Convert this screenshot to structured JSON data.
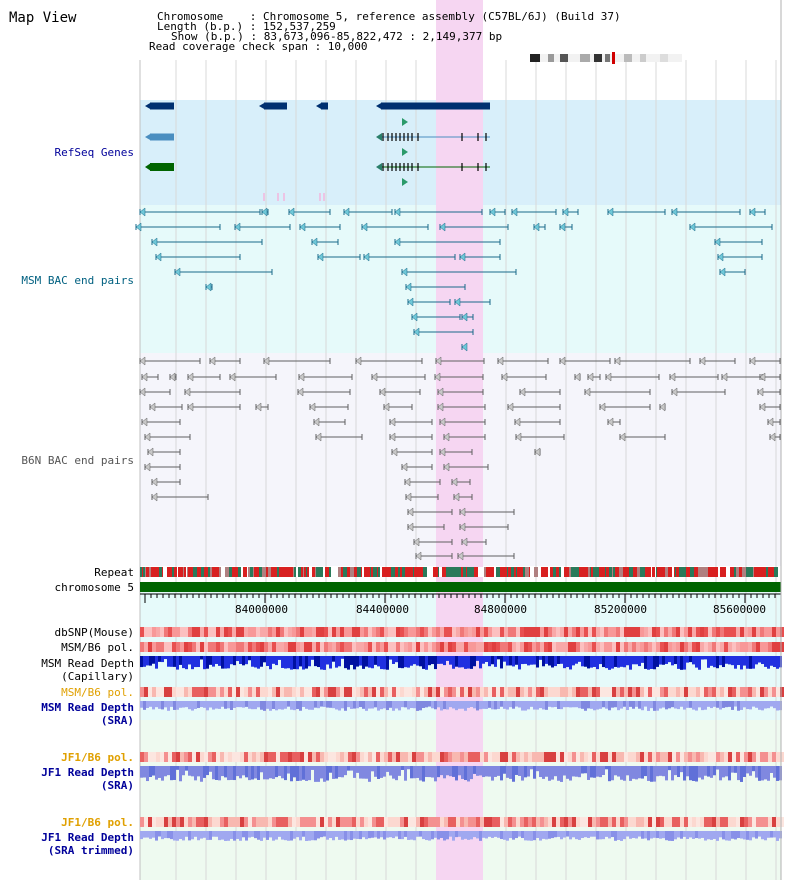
{
  "title": "Map View",
  "header": {
    "chromosome": "Chromosome    : Chromosome 5, reference assembly (C57BL/6J) (Build 37)",
    "length": "Length (b.p.) : 152,537,259",
    "show": "Show (b.p.) : 83,673,096-85,822,472 : 2,149,377 bp",
    "coverage": "Read coverage check span : 10,000"
  },
  "tracks": {
    "refseq": "RefSeq Genes",
    "msm_bac": "MSM BAC end pairs",
    "b6n_bac": "B6N BAC end pairs",
    "repeat": "Repeat",
    "chromosome": "chromosome 5",
    "dbsnp": "dbSNP(Mouse)",
    "msm_b6_pol": "MSM/B6 pol.",
    "msm_depth_cap_1": "MSM Read Depth",
    "msm_depth_cap_2": "(Capillary)",
    "msm_b6_pol_sra": "MSM/B6 pol.",
    "msm_depth_sra_1": "MSM Read Depth",
    "msm_depth_sra_2": "(SRA)",
    "jf1_pol_1": "JF1/B6 pol.",
    "jf1_depth_1": "JF1 Read Depth",
    "jf1_depth_1b": "(SRA)",
    "jf1_pol_2": "JF1/B6 pol.",
    "jf1_depth_2": "JF1 Read Depth",
    "jf1_depth_2b": "(SRA trimmed)"
  },
  "axis": {
    "ticks": [
      "84000000",
      "84400000",
      "84800000",
      "85200000",
      "85600000"
    ]
  },
  "colors": {
    "highlight": "#f6d6f2",
    "refseq_bg": "#d8effa",
    "msm_bg": "#e6fafa",
    "b6n_bg": "#f5f5fb",
    "navy_label": "#00009a",
    "teal_label": "#006080",
    "orange_label": "#e0a000",
    "chrom_green": "#006400"
  }
}
